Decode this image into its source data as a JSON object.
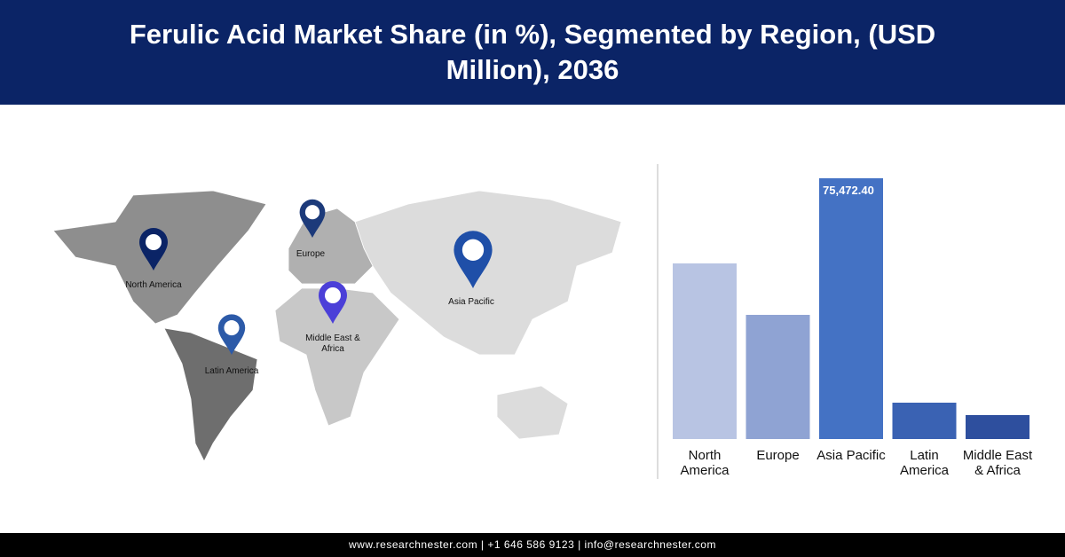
{
  "chart_data": {
    "type": "bar",
    "title": "Ferulic Acid Market Share (in %), Segmented by Region, (USD Million), 2036",
    "categories": [
      "North America",
      "Europe",
      "Asia Pacific",
      "Latin America",
      "Middle East & Africa"
    ],
    "values": [
      50830,
      35940,
      75472.4,
      10525,
      6931
    ],
    "value_labels": [
      null,
      null,
      "75,472.40",
      null,
      null
    ],
    "colors": [
      "#b8c4e3",
      "#8fa3d3",
      "#4472c4",
      "#3a62b3",
      "#2e4f9e"
    ]
  },
  "map": {
    "labels": [
      "North America",
      "Europe",
      "Asia Pacific",
      "Middle East & Africa",
      "Latin America"
    ]
  },
  "footer": "www.researchnester.com | +1 646 586 9123 | info@researchnester.com"
}
